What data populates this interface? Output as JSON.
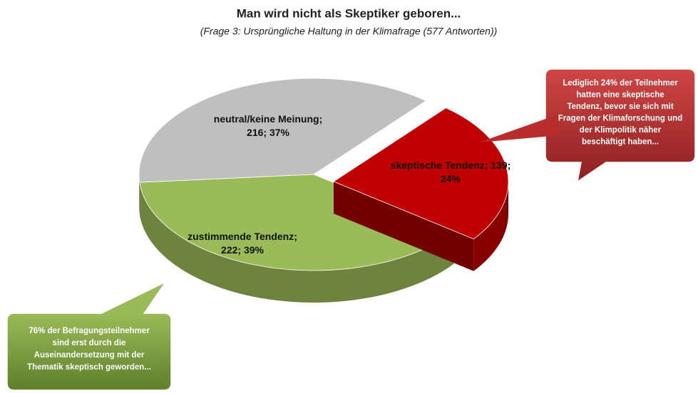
{
  "chart_data": {
    "type": "pie",
    "title": "Man wird nicht als Skeptiker geboren...",
    "subtitle": "(Frage 3: Ursprüngliche Haltung in der Klimafrage (577 Antworten))",
    "categories": [
      "skeptische Tendenz",
      "zustimmende Tendenz",
      "neutral/keine Meinung"
    ],
    "values": [
      139,
      222,
      216
    ],
    "value_labels": [
      [
        "skeptische Tendenz; 139;",
        "24%"
      ],
      [
        "zustimmende Tendenz;",
        "222; 39%"
      ],
      [
        "neutral/keine Meinung;",
        "216; 37%"
      ]
    ],
    "colors": [
      "#c00000",
      "#9bbb59",
      "#bfbfbf"
    ],
    "annotations": [
      [
        "Lediglich 24% der Teilnehmer",
        "hatten eine skeptische",
        "Tendenz, bevor sie sich mit",
        "Fragen der Klimaforschung und",
        "der Klimpolitik näher",
        "beschäftigt haben..."
      ],
      [
        "76% der Befragungsteilnehmer",
        "sind erst durch die",
        "Auseinandersetzung mit der",
        "Thematik skeptisch geworden..."
      ]
    ]
  }
}
